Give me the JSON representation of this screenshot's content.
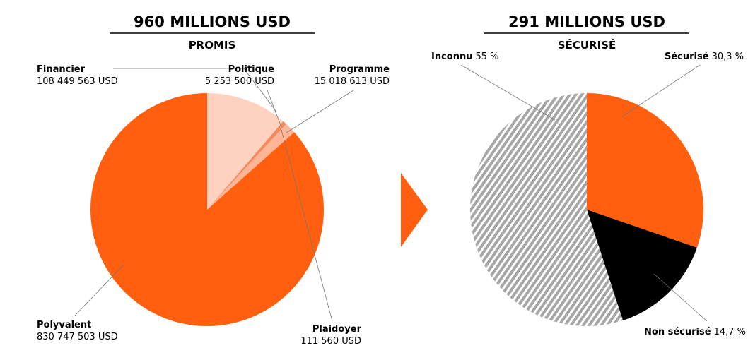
{
  "chart_data": [
    {
      "type": "pie",
      "title": "960 MILLIONS USD",
      "subtitle": "PROMIS",
      "categories": [
        "Financier",
        "Politique",
        "Programme",
        "Plaidoyer",
        "Polyvalent"
      ],
      "values": [
        108449563,
        5253500,
        15018613,
        111560,
        830747503
      ],
      "value_labels": [
        "108 449 563 USD",
        "5 253 500 USD",
        "15 018 613 USD",
        "111 560 USD",
        "830 747 503 USD"
      ],
      "colors": [
        "#ffd2bf",
        "#f4895e",
        "#ffb596",
        "#ffe3d6",
        "#ff5f0f"
      ]
    },
    {
      "type": "pie",
      "title": "291 MILLIONS USD",
      "subtitle": "SÉCURISÉ",
      "categories": [
        "Sécurisé",
        "Non sécurisé",
        "Inconnu"
      ],
      "values": [
        30.3,
        14.7,
        55
      ],
      "value_labels": [
        "30,3 %",
        "14,7 %",
        "55 %"
      ],
      "colors": [
        "#ff5f0f",
        "#000000",
        "#a6a6a6"
      ],
      "patterns": [
        null,
        null,
        "stripes"
      ]
    }
  ]
}
